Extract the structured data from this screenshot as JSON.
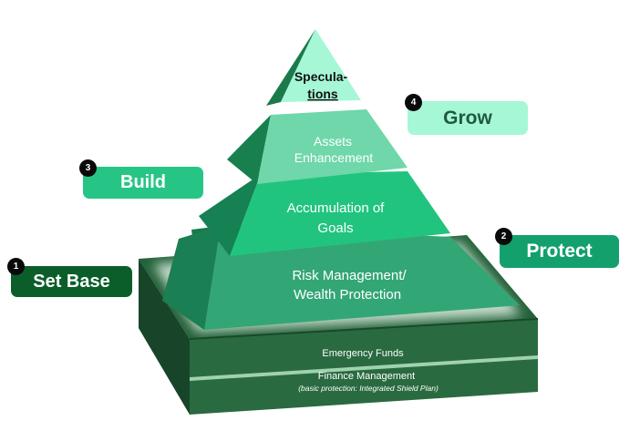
{
  "pyramid": {
    "levels": [
      {
        "id": "speculations",
        "lines": [
          "Specula-",
          "tions"
        ]
      },
      {
        "id": "assets-enhancement",
        "lines": [
          "Assets",
          "Enhancement"
        ]
      },
      {
        "id": "accumulation-of-goals",
        "lines": [
          "Accumulation of",
          "Goals"
        ]
      },
      {
        "id": "risk-management",
        "lines": [
          "Risk Management/",
          "Wealth Protection"
        ]
      }
    ],
    "base": {
      "emergency_funds": "Emergency Funds",
      "finance_management": "Finance Management",
      "finance_management_sub": "(basic protection: Integrated Shield Plan)"
    }
  },
  "tags": [
    {
      "id": "set-base",
      "number": "1",
      "label": "Set Base",
      "color": "#0b5e2a",
      "text_color": "#ffffff"
    },
    {
      "id": "protect",
      "number": "2",
      "label": "Protect",
      "color": "#13a06d",
      "text_color": "#ffffff"
    },
    {
      "id": "build",
      "number": "3",
      "label": "Build",
      "color": "#27c585",
      "text_color": "#ffffff"
    },
    {
      "id": "grow",
      "number": "4",
      "label": "Grow",
      "color": "#a6f7d6",
      "text_color": "#1f5a3d"
    }
  ],
  "colors": {
    "speculations": "#a6f7d6",
    "assets": "#6fd7aa",
    "accumulation": "#21c47f",
    "risk": "#33a676",
    "base_dark": "#1d5a32"
  }
}
